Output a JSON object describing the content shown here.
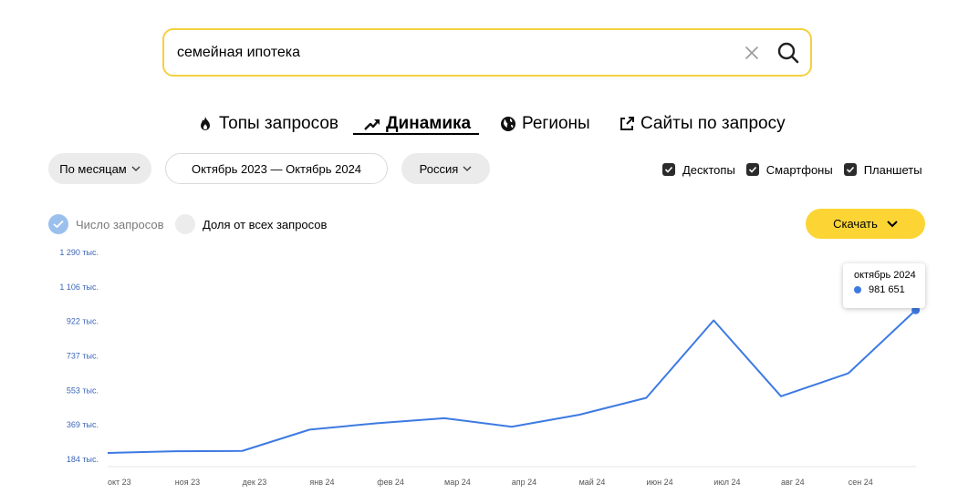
{
  "search": {
    "value": "семейная ипотека",
    "clear_icon": "close-icon",
    "search_icon": "search-icon"
  },
  "tabs": [
    {
      "label": "Топы запросов",
      "icon": "fire-icon",
      "active": false
    },
    {
      "label": "Динамика",
      "icon": "trend-up-icon",
      "active": true
    },
    {
      "label": "Регионы",
      "icon": "globe-icon",
      "active": false
    },
    {
      "label": "Сайты по запросу",
      "icon": "external-link-icon",
      "active": false
    }
  ],
  "filters": {
    "period_group": "По месяцам",
    "date_range": "Октябрь 2023 — Октябрь 2024",
    "region": "Россия"
  },
  "devices": [
    {
      "label": "Десктопы",
      "checked": true
    },
    {
      "label": "Смартфоны",
      "checked": true
    },
    {
      "label": "Планшеты",
      "checked": true
    }
  ],
  "metrics": [
    {
      "label": "Число запросов",
      "selected": true
    },
    {
      "label": "Доля от всех запросов",
      "selected": false
    }
  ],
  "download_label": "Скачать",
  "colors": {
    "accent_yellow": "#fcd535",
    "search_border": "#f4d03f",
    "line": "#3d7ae2",
    "axis_text": "#3c66b8"
  },
  "tooltip": {
    "label": "октябрь 2024",
    "value": "981 651"
  },
  "chart_data": {
    "type": "line",
    "categories": [
      "окт 23",
      "ноя 23",
      "дек 23",
      "янв 24",
      "фев 24",
      "мар 24",
      "апр 24",
      "май 24",
      "июн 24",
      "июл 24",
      "авг 24",
      "сен 24",
      "окт 24"
    ],
    "x_tick_labels": [
      "окт 23",
      "ноя 23",
      "дек 23",
      "янв 24",
      "фев 24",
      "мар 24",
      "апр 24",
      "май 24",
      "июн 24",
      "июл 24",
      "авг 24",
      "сен 24"
    ],
    "series": [
      {
        "values": [
          218000,
          227000,
          229000,
          343000,
          377000,
          404000,
          358000,
          422000,
          513000,
          927000,
          521000,
          644000,
          981651
        ]
      }
    ],
    "y_ticks": [
      184000,
      369000,
      553000,
      737000,
      922000,
      1106000,
      1290000
    ],
    "y_tick_labels": [
      "184 тыс.",
      "369 тыс.",
      "553 тыс.",
      "737 тыс.",
      "922 тыс.",
      "1 106 тыс.",
      "1 290 тыс."
    ],
    "ylim": [
      184000,
      1290000
    ],
    "grid": false,
    "highlighted_point": 12
  }
}
